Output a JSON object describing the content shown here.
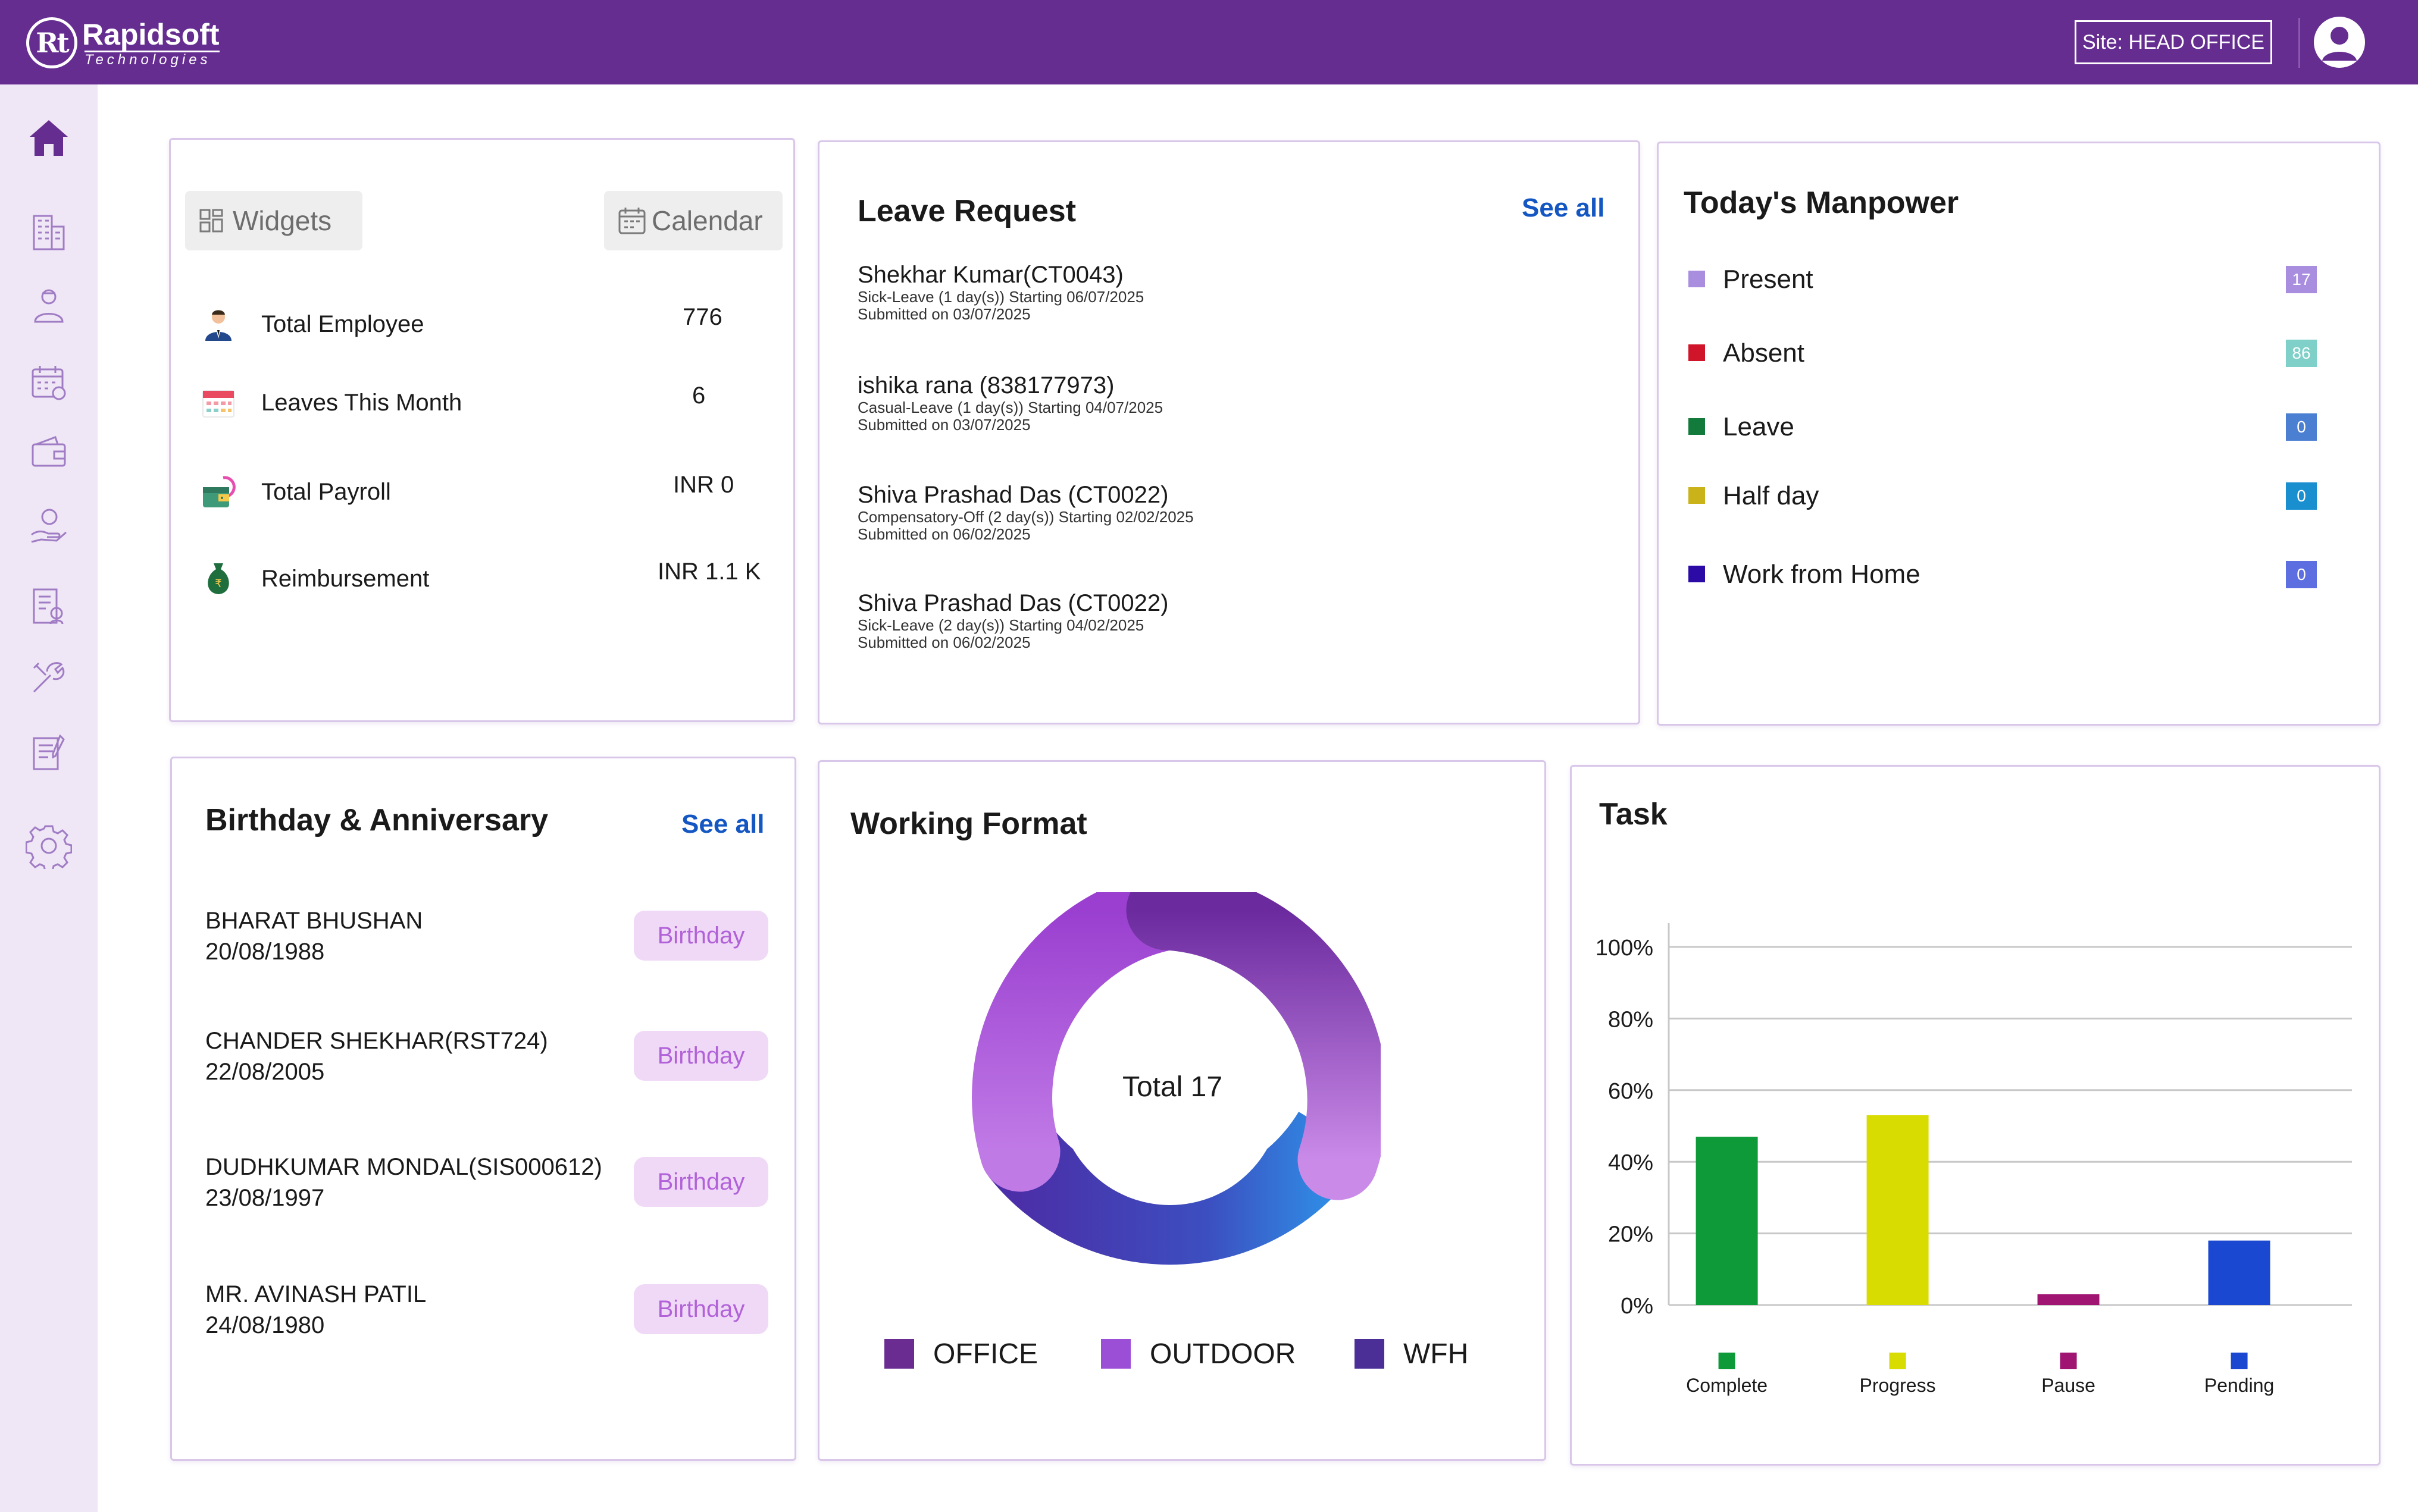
{
  "header": {
    "logo_mark": "Rt",
    "logo_name": "Rapidsoft",
    "logo_sub": "Technologies",
    "site_label": "Site: HEAD OFFICE"
  },
  "sidebar": {
    "items": [
      {
        "name": "home-icon"
      },
      {
        "name": "building-icon"
      },
      {
        "name": "employee-icon"
      },
      {
        "name": "calendar-icon"
      },
      {
        "name": "wallet-icon"
      },
      {
        "name": "hand-coin-icon"
      },
      {
        "name": "report-icon"
      },
      {
        "name": "tools-icon"
      },
      {
        "name": "document-edit-icon"
      },
      {
        "name": "gear-icon"
      }
    ]
  },
  "summary": {
    "widgets_label": "Widgets",
    "calendar_label": "Calendar",
    "stats": [
      {
        "label": "Total Employee",
        "value": "776",
        "icon": "employee-icon"
      },
      {
        "label": "Leaves This Month",
        "value": "6",
        "icon": "calendar-icon"
      },
      {
        "label": "Total Payroll",
        "value": "INR 0",
        "icon": "payroll-icon"
      },
      {
        "label": "Reimbursement",
        "value": "INR 1.1 K",
        "icon": "money-bag-icon"
      }
    ]
  },
  "leave": {
    "title": "Leave Request",
    "see_all": "See all",
    "items": [
      {
        "name": "Shekhar Kumar(CT0043)",
        "detail": "Sick-Leave (1 day(s)) Starting 06/07/2025",
        "submitted": "Submitted on 03/07/2025"
      },
      {
        "name": "ishika rana (838177973)",
        "detail": "Casual-Leave (1 day(s)) Starting 04/07/2025",
        "submitted": "Submitted on 03/07/2025"
      },
      {
        "name": "Shiva Prashad Das (CT0022)",
        "detail": "Compensatory-Off (2 day(s)) Starting 02/02/2025",
        "submitted": "Submitted on 06/02/2025"
      },
      {
        "name": "Shiva Prashad Das (CT0022)",
        "detail": "Sick-Leave (2 day(s)) Starting 04/02/2025",
        "submitted": "Submitted on 06/02/2025"
      }
    ]
  },
  "manpower": {
    "title": "Today's Manpower",
    "rows": [
      {
        "label": "Present",
        "count": "17",
        "dot_color": "#a98ee0",
        "badge_color": "#a98ee0"
      },
      {
        "label": "Absent",
        "count": "86",
        "dot_color": "#d0142a",
        "badge_color": "#7ed0c8"
      },
      {
        "label": "Leave",
        "count": "0",
        "dot_color": "#127a3a",
        "badge_color": "#4b7fd1"
      },
      {
        "label": "Half day",
        "count": "0",
        "dot_color": "#c9b21a",
        "badge_color": "#1a8fd0"
      },
      {
        "label": "Work from Home",
        "count": "0",
        "dot_color": "#2b0aa6",
        "badge_color": "#5d6ee0"
      }
    ]
  },
  "birthday": {
    "title": "Birthday & Anniversary",
    "see_all": "See all",
    "items": [
      {
        "name": "BHARAT BHUSHAN",
        "date": "20/08/1988",
        "type": "Birthday"
      },
      {
        "name": "CHANDER SHEKHAR(RST724)",
        "date": "22/08/2005",
        "type": "Birthday"
      },
      {
        "name": "DUDHKUMAR MONDAL(SIS000612)",
        "date": "23/08/1997",
        "type": "Birthday"
      },
      {
        "name": "MR. AVINASH PATIL",
        "date": "24/08/1980",
        "type": "Birthday"
      }
    ]
  },
  "working_format": {
    "title": "Working Format",
    "center_label": "Total 17",
    "legend": [
      {
        "label": "OFFICE",
        "color": "#6a2c91"
      },
      {
        "label": "OUTDOOR",
        "color": "#9b4fd6"
      },
      {
        "label": "WFH",
        "color": "#4b2f97"
      }
    ]
  },
  "task": {
    "title": "Task"
  },
  "chart_data": {
    "type": "bar",
    "title": "Task",
    "categories": [
      "Complete",
      "Progress",
      "Pause",
      "Pending"
    ],
    "values": [
      47,
      53,
      3,
      18
    ],
    "colors": [
      "#0f9a3a",
      "#d8dc00",
      "#a01572",
      "#1a48d0"
    ],
    "y_ticks": [
      "0%",
      "20%",
      "40%",
      "60%",
      "80%",
      "100%"
    ],
    "ylim": [
      0,
      100
    ],
    "grid": true,
    "xlabel": "",
    "ylabel": ""
  }
}
